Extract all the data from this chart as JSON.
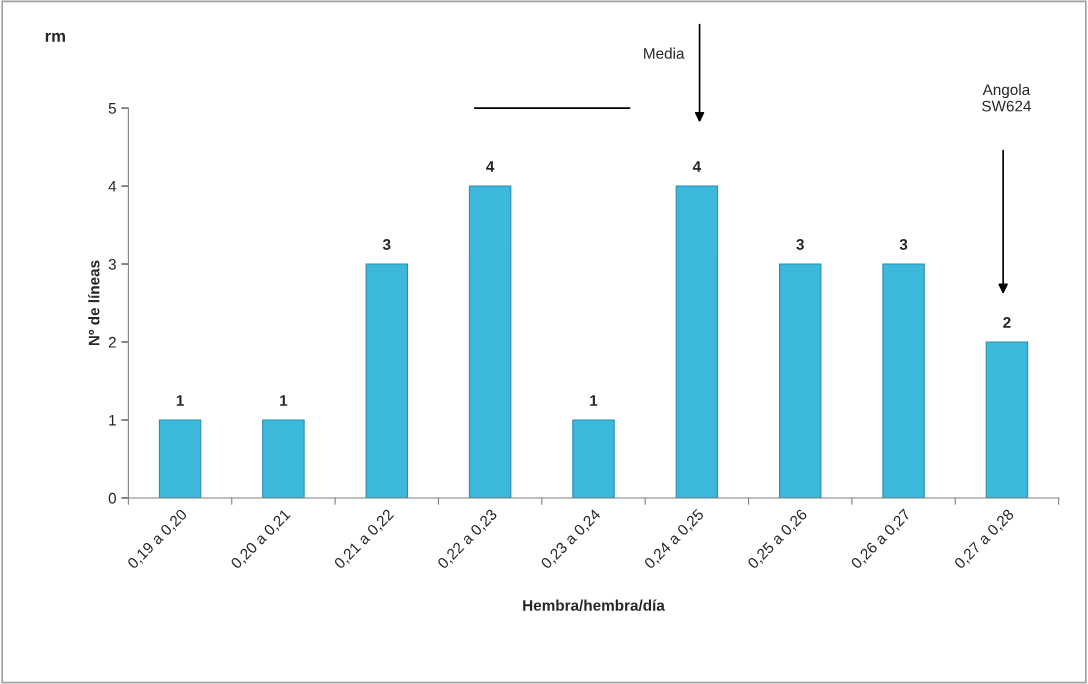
{
  "chart_data": {
    "type": "bar",
    "title": "rm",
    "xlabel": "Hembra/hembra/día",
    "ylabel": "Nº de líneas",
    "categories": [
      "0,19 a 0,20",
      "0,20 a 0,21",
      "0,21 a 0,22",
      "0,22 a 0,23",
      "0,23 a 0,24",
      "0,24 a 0,25",
      "0,25 a 0,26",
      "0,26 a 0,27",
      "0,27 a 0,28"
    ],
    "values": [
      1,
      1,
      3,
      4,
      1,
      4,
      3,
      3,
      2
    ],
    "color": "#3cb8dc",
    "ylim": [
      0,
      5
    ],
    "yticks": [
      0,
      1,
      2,
      3,
      4,
      5
    ],
    "data_labels": true,
    "grid": false,
    "legend": false,
    "annotations": [
      "Media",
      "Angola\nSW624"
    ]
  }
}
